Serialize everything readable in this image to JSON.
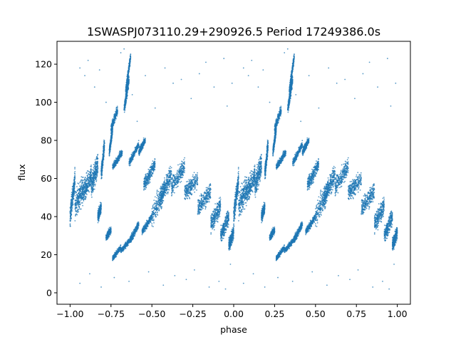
{
  "chart_data": {
    "type": "scatter",
    "title": "1SWASPJ073110.29+290926.5 Period 17249386.0s",
    "xlabel": "phase",
    "ylabel": "flux",
    "xlim": [
      -1.08,
      1.08
    ],
    "ylim": [
      -6,
      132
    ],
    "xticks": [
      -1.0,
      -0.75,
      -0.5,
      -0.25,
      0.0,
      0.25,
      0.5,
      0.75,
      1.0
    ],
    "xtick_labels": [
      "−1.00",
      "−0.75",
      "−0.50",
      "−0.25",
      "0.00",
      "0.25",
      "0.50",
      "0.75",
      "1.00"
    ],
    "yticks": [
      0,
      20,
      40,
      60,
      80,
      100,
      120
    ],
    "ytick_labels": [
      "0",
      "20",
      "40",
      "60",
      "80",
      "100",
      "120"
    ],
    "grid": false,
    "marker_color": "#1f77b4",
    "mirrored": true,
    "segments": [
      {
        "x": [
          0.0,
          0.03
        ],
        "y": [
          40,
          60
        ],
        "spread": 12
      },
      {
        "x": [
          0.03,
          0.08
        ],
        "y": [
          45,
          55
        ],
        "spread": 15
      },
      {
        "x": [
          0.08,
          0.13
        ],
        "y": [
          52,
          62
        ],
        "spread": 12
      },
      {
        "x": [
          0.13,
          0.17
        ],
        "y": [
          56,
          68
        ],
        "spread": 14
      },
      {
        "x": [
          0.17,
          0.19
        ],
        "y": [
          40,
          45
        ],
        "spread": 6
      },
      {
        "x": [
          0.19,
          0.21
        ],
        "y": [
          62,
          78
        ],
        "spread": 8
      },
      {
        "x": [
          0.22,
          0.25
        ],
        "y": [
          29,
          33
        ],
        "spread": 4
      },
      {
        "x": [
          0.24,
          0.26
        ],
        "y": [
          74,
          86
        ],
        "spread": 5
      },
      {
        "x": [
          0.26,
          0.32
        ],
        "y": [
          66,
          74
        ],
        "spread": 4
      },
      {
        "x": [
          0.25,
          0.29
        ],
        "y": [
          86,
          96
        ],
        "spread": 5
      },
      {
        "x": [
          0.33,
          0.36
        ],
        "y": [
          96,
          112
        ],
        "spread": 6
      },
      {
        "x": [
          0.34,
          0.37
        ],
        "y": [
          106,
          124
        ],
        "spread": 5
      },
      {
        "x": [
          0.36,
          0.42
        ],
        "y": [
          68,
          78
        ],
        "spread": 4
      },
      {
        "x": [
          0.42,
          0.46
        ],
        "y": [
          74,
          80
        ],
        "spread": 4
      },
      {
        "x": [
          0.45,
          0.52
        ],
        "y": [
          56,
          68
        ],
        "spread": 8
      },
      {
        "x": [
          0.44,
          0.5
        ],
        "y": [
          32,
          40
        ],
        "spread": 4
      },
      {
        "x": [
          0.5,
          0.58
        ],
        "y": [
          40,
          55
        ],
        "spread": 12
      },
      {
        "x": [
          0.55,
          0.62
        ],
        "y": [
          50,
          62
        ],
        "spread": 12
      },
      {
        "x": [
          0.62,
          0.7
        ],
        "y": [
          56,
          66
        ],
        "spread": 10
      },
      {
        "x": [
          0.7,
          0.78
        ],
        "y": [
          52,
          60
        ],
        "spread": 10
      },
      {
        "x": [
          0.78,
          0.86
        ],
        "y": [
          44,
          54
        ],
        "spread": 10
      },
      {
        "x": [
          0.86,
          0.92
        ],
        "y": [
          36,
          46
        ],
        "spread": 10
      },
      {
        "x": [
          0.92,
          0.97
        ],
        "y": [
          30,
          40
        ],
        "spread": 10
      },
      {
        "x": [
          0.97,
          1.0
        ],
        "y": [
          25,
          32
        ],
        "spread": 8
      },
      {
        "x": [
          0.26,
          0.31
        ],
        "y": [
          18,
          24
        ],
        "spread": 3
      },
      {
        "x": [
          0.31,
          0.37
        ],
        "y": [
          22,
          28
        ],
        "spread": 3
      },
      {
        "x": [
          0.37,
          0.42
        ],
        "y": [
          28,
          36
        ],
        "spread": 4
      }
    ],
    "scatter_outliers": [
      [
        0.06,
        118
      ],
      [
        0.09,
        114
      ],
      [
        0.11,
        122
      ],
      [
        0.15,
        108
      ],
      [
        0.18,
        117
      ],
      [
        0.22,
        100
      ],
      [
        0.31,
        126
      ],
      [
        0.33,
        128
      ],
      [
        0.38,
        104
      ],
      [
        0.41,
        90
      ],
      [
        0.46,
        114
      ],
      [
        0.52,
        97
      ],
      [
        0.58,
        118
      ],
      [
        0.63,
        110
      ],
      [
        0.68,
        112
      ],
      [
        0.74,
        102
      ],
      [
        0.79,
        115
      ],
      [
        0.83,
        121
      ],
      [
        0.88,
        108
      ],
      [
        0.94,
        123
      ],
      [
        0.96,
        98
      ],
      [
        0.99,
        110
      ],
      [
        0.06,
        5
      ],
      [
        0.12,
        10
      ],
      [
        0.19,
        3
      ],
      [
        0.27,
        8
      ],
      [
        0.36,
        6
      ],
      [
        0.48,
        11
      ],
      [
        0.57,
        4
      ],
      [
        0.64,
        9
      ],
      [
        0.71,
        7
      ],
      [
        0.76,
        12
      ],
      [
        0.85,
        3
      ],
      [
        0.91,
        6
      ],
      [
        0.95,
        2
      ],
      [
        0.98,
        15
      ]
    ]
  }
}
